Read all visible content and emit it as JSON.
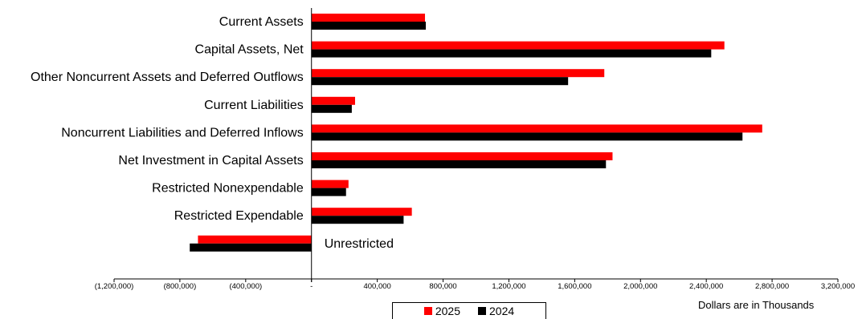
{
  "chart_data": {
    "type": "bar",
    "orientation": "horizontal",
    "categories": [
      "Current Assets",
      "Capital Assets, Net",
      "Other Noncurrent Assets and Deferred Outflows",
      "Current Liabilities",
      "Noncurrent Liabilities and Deferred Inflows",
      "Net Investment in Capital Assets",
      "Restricted Nonexpendable",
      "Restricted Expendable",
      "Unrestricted"
    ],
    "series": [
      {
        "name": "2025",
        "color": "#ff0000",
        "values": [
          690000,
          2510000,
          1780000,
          265000,
          2740000,
          1830000,
          225000,
          610000,
          -690000
        ]
      },
      {
        "name": "2024",
        "color": "#000000",
        "values": [
          695000,
          2430000,
          1560000,
          245000,
          2620000,
          1790000,
          210000,
          560000,
          -740000
        ]
      }
    ],
    "xlim": [
      -1200000,
      3200000
    ],
    "xticks": [
      -1200000,
      -800000,
      -400000,
      0,
      400000,
      800000,
      1200000,
      1600000,
      2000000,
      2400000,
      2800000,
      3200000
    ],
    "xtick_labels": [
      "(1,200,000)",
      "(800,000)",
      "(400,000)",
      "-",
      "400,000",
      "800,000",
      "1,200,000",
      "1,600,000",
      "2,000,000",
      "2,400,000",
      "2,800,000",
      "3,200,000"
    ],
    "note": "Dollars are in Thousands",
    "legend_position": "bottom",
    "grid": false
  }
}
